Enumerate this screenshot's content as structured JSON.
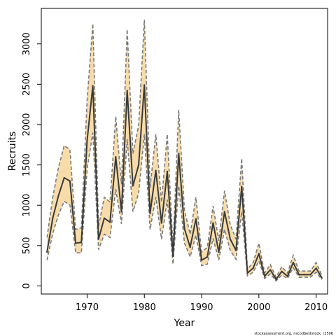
{
  "chart_data": {
    "type": "line",
    "title": "",
    "xlabel": "Year",
    "ylabel": "Recruits",
    "credit": "stockassessment.org, nscodbeststock, r2506",
    "xlim": [
      1962,
      2012
    ],
    "ylim": [
      -100,
      3440
    ],
    "x_ticks": [
      1970,
      1980,
      1990,
      2000,
      2010
    ],
    "y_ticks": [
      0,
      500,
      1000,
      1500,
      2000,
      2500,
      3000
    ],
    "grid": false,
    "colors": {
      "band": "#f7dcaa",
      "estimate": "#3a3a3a",
      "bounds": "#7a7a7a"
    },
    "series": [
      {
        "x": [
          1963,
          1964,
          1965,
          1966,
          1967,
          1968,
          1969,
          1970,
          1971,
          1972,
          1973,
          1974,
          1975,
          1976,
          1977,
          1978,
          1979,
          1980,
          1981,
          1982,
          1983,
          1984,
          1985,
          1986,
          1987,
          1988,
          1989,
          1990,
          1991,
          1992,
          1993,
          1994,
          1995,
          1996,
          1997,
          1998,
          1999,
          2000,
          2001,
          2002,
          2003,
          2004,
          2005,
          2006,
          2007,
          2008,
          2009,
          2010,
          2011
        ],
        "values": [
          420,
          840,
          1120,
          1340,
          1300,
          530,
          540,
          1800,
          2480,
          580,
          840,
          790,
          1600,
          920,
          2420,
          1240,
          1500,
          2490,
          900,
          1430,
          780,
          1420,
          370,
          1640,
          710,
          480,
          830,
          320,
          360,
          780,
          420,
          920,
          580,
          440,
          1230,
          160,
          220,
          400,
          120,
          200,
          80,
          180,
          120,
          290,
          140,
          140,
          140,
          220,
          100
        ],
        "lower": [
          320,
          650,
          880,
          1050,
          1000,
          410,
          410,
          1450,
          1900,
          450,
          640,
          600,
          1200,
          770,
          1820,
          920,
          1150,
          1880,
          700,
          1100,
          580,
          1070,
          270,
          1240,
          530,
          360,
          630,
          250,
          270,
          590,
          320,
          700,
          440,
          330,
          920,
          125,
          170,
          310,
          92,
          150,
          62,
          135,
          92,
          225,
          108,
          108,
          108,
          170,
          78
        ],
        "upper": [
          600,
          1100,
          1470,
          1740,
          1690,
          700,
          720,
          2300,
          3250,
          740,
          1100,
          1040,
          2100,
          1260,
          3180,
          1640,
          1990,
          3300,
          1220,
          1880,
          1040,
          1880,
          480,
          2180,
          940,
          640,
          1100,
          420,
          480,
          990,
          560,
          1180,
          760,
          580,
          1580,
          210,
          290,
          530,
          160,
          265,
          108,
          238,
          160,
          380,
          185,
          185,
          185,
          290,
          132
        ]
      }
    ]
  }
}
